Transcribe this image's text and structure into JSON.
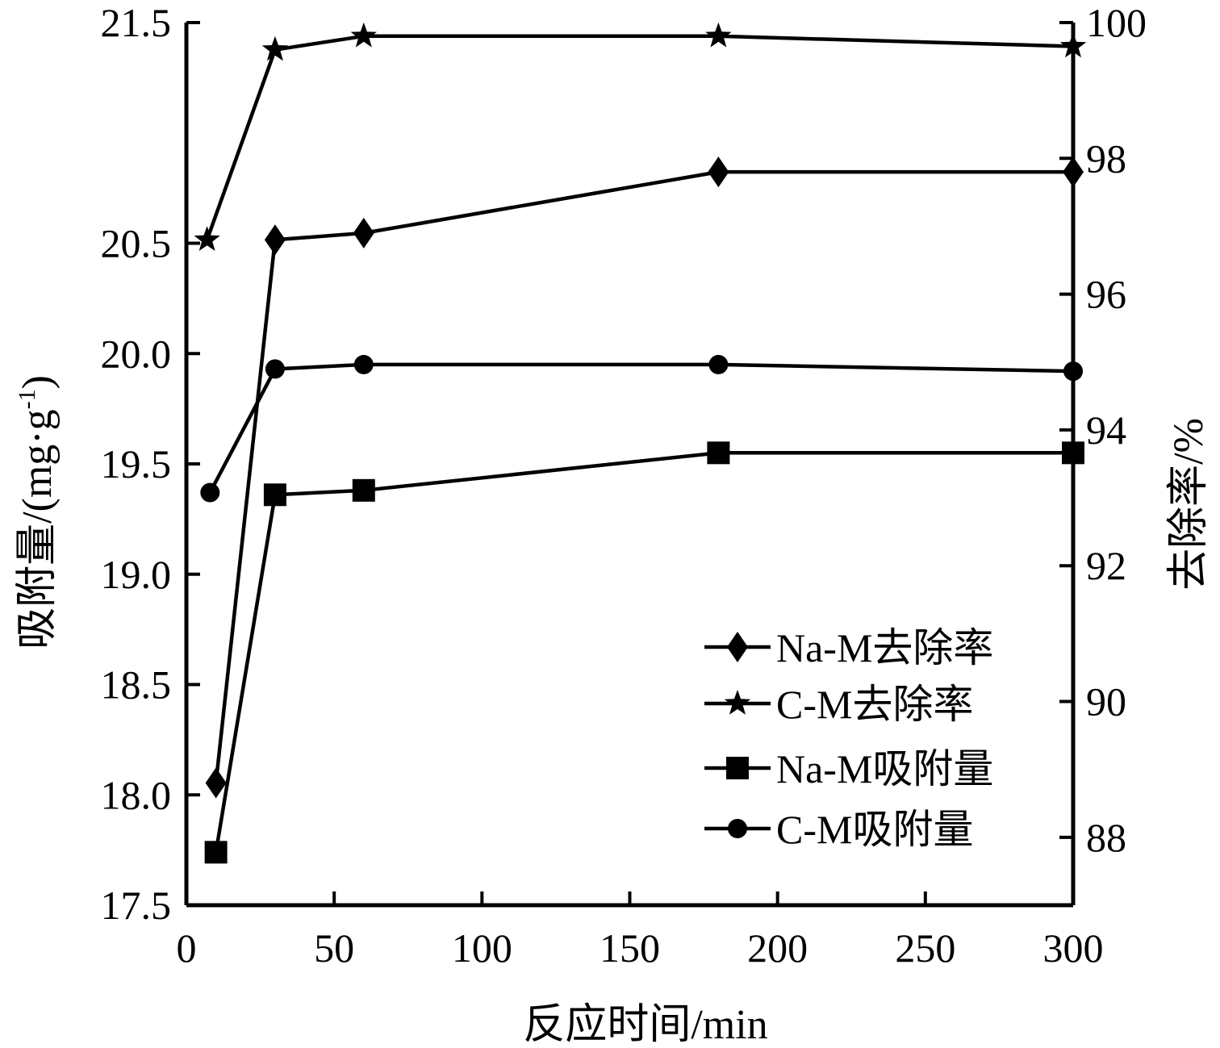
{
  "chart_data": {
    "type": "line",
    "xlabel": "反应时间/min",
    "ylabel_left": "吸附量/(mg·g",
    "ylabel_left_sup": "-1",
    "ylabel_left_close": ")",
    "ylabel_right": "去除率/%",
    "xlim": [
      0,
      300
    ],
    "ylim_left": [
      17.5,
      21.5
    ],
    "ylim_right": [
      87.0,
      100.0
    ],
    "xticks": [
      "0",
      "50",
      "100",
      "150",
      "200",
      "250",
      "300"
    ],
    "xtick_values": [
      0,
      50,
      100,
      150,
      200,
      250,
      300
    ],
    "yticks_left": [
      "17.5",
      "18.0",
      "18.5",
      "19.0",
      "19.5",
      "20.0",
      "20.5",
      "21.5"
    ],
    "ytick_values_left": [
      17.5,
      18.0,
      18.5,
      19.0,
      19.5,
      20.0,
      20.5,
      21.5
    ],
    "yticks_right": [
      "88",
      "90",
      "92",
      "94",
      "96",
      "98",
      "100"
    ],
    "ytick_values_right": [
      88,
      90,
      92,
      94,
      96,
      98,
      100
    ],
    "legend_position": "lower-right",
    "series": [
      {
        "name": "Na-M去除率",
        "axis": "right",
        "marker": "diamond",
        "x": [
          10,
          30,
          60,
          180,
          300
        ],
        "y": [
          88.8,
          96.8,
          96.9,
          97.8,
          97.8
        ]
      },
      {
        "name": "C-M去除率",
        "axis": "right",
        "marker": "star",
        "x": [
          7,
          30,
          60,
          180,
          300
        ],
        "y": [
          96.8,
          99.6,
          99.8,
          99.8,
          99.65
        ]
      },
      {
        "name": "Na-M吸附量",
        "axis": "left",
        "marker": "square",
        "x": [
          10,
          30,
          60,
          180,
          300
        ],
        "y": [
          17.74,
          19.36,
          19.38,
          19.55,
          19.55
        ]
      },
      {
        "name": "C-M吸附量",
        "axis": "left",
        "marker": "circle",
        "x": [
          8,
          30,
          60,
          180,
          300
        ],
        "y": [
          19.37,
          19.93,
          19.95,
          19.95,
          19.92
        ]
      }
    ]
  }
}
